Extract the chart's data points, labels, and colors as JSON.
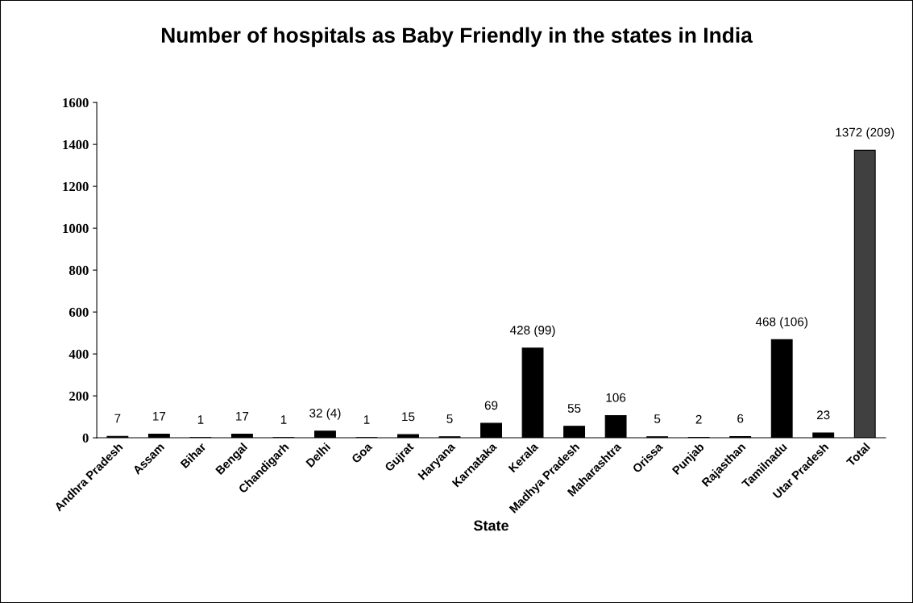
{
  "chart_data": {
    "type": "bar",
    "title": "Number of hospitals as Baby Friendly in the states in India",
    "xlabel": "State",
    "categories": [
      "Andhra Pradesh",
      "Assam",
      "Bihar",
      "Bengal",
      "Chandigarh",
      "Delhi",
      "Goa",
      "Gujrat",
      "Haryana",
      "Karnataka",
      "Kerala",
      "Madhya Pradesh",
      "Maharashtra",
      "Orissa",
      "Punjab",
      "Rajasthan",
      "Tamilnadu",
      "Utar Pradesh",
      "Total"
    ],
    "values": [
      7,
      17,
      1,
      17,
      1,
      32,
      1,
      15,
      5,
      69,
      428,
      55,
      106,
      5,
      2,
      6,
      468,
      23,
      1372
    ],
    "colors": [
      "#000000",
      "#000000",
      "#000000",
      "#000000",
      "#000000",
      "#000000",
      "#000000",
      "#000000",
      "#000000",
      "#000000",
      "#000000",
      "#000000",
      "#000000",
      "#000000",
      "#000000",
      "#000000",
      "#000000",
      "#000000",
      "#404040"
    ],
    "value_labels": [
      "7",
      "17",
      "1",
      "17",
      "1",
      "32 (4)",
      "1",
      "15",
      "5",
      "69",
      "428 (99)",
      "55",
      "106",
      "5",
      "2",
      "6",
      "468 (106)",
      "23",
      "1372 (209)"
    ],
    "ylim": [
      0,
      1600
    ],
    "yticks": [
      0,
      200,
      400,
      600,
      800,
      1000,
      1200,
      1400,
      1600
    ],
    "grid": false
  }
}
